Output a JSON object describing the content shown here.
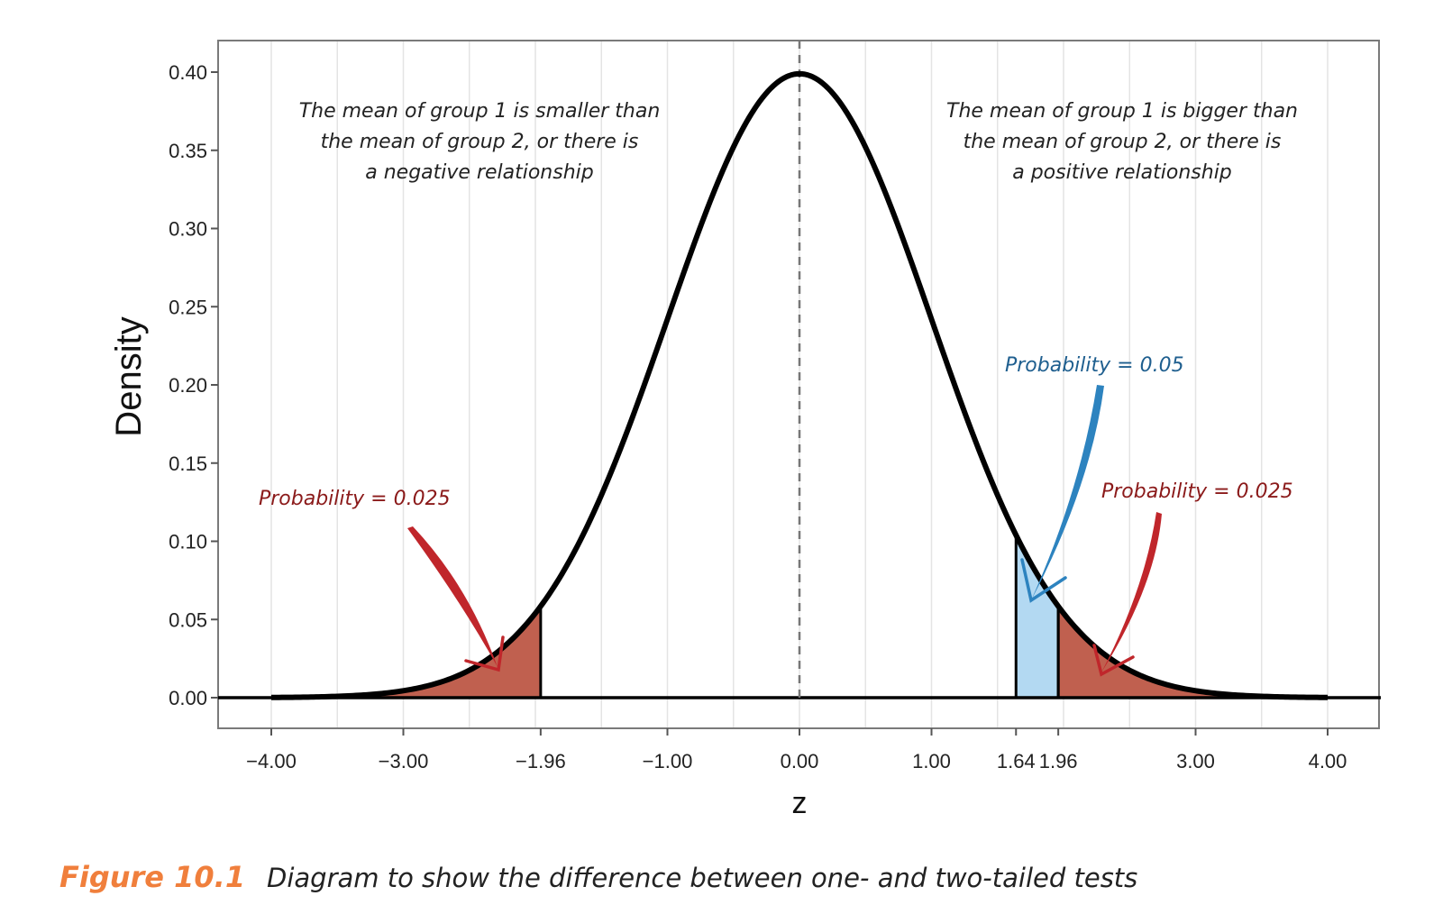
{
  "chart_data": {
    "type": "area",
    "distribution": "standard normal density",
    "xlabel": "z",
    "ylabel": "Density",
    "xlim": [
      -4.4,
      4.4
    ],
    "ylim": [
      -0.02,
      0.42
    ],
    "x_ticks": [
      -4.0,
      -3.0,
      -1.96,
      -1.0,
      0.0,
      1.0,
      1.64,
      1.96,
      3.0,
      4.0
    ],
    "x_tick_labels": [
      "−4.00",
      "−3.00",
      "−1.96",
      "−1.00",
      "0.00",
      "1.00",
      "1.64",
      "1.96",
      "3.00",
      "4.00"
    ],
    "y_ticks": [
      0.0,
      0.05,
      0.1,
      0.15,
      0.2,
      0.25,
      0.3,
      0.35,
      0.4
    ],
    "y_tick_labels": [
      "0.00",
      "0.05",
      "0.10",
      "0.15",
      "0.20",
      "0.25",
      "0.30",
      "0.35",
      "0.40"
    ],
    "mean_line_x": 0.0,
    "grid": "vertical minor lines",
    "curve": {
      "x_from": -4.0,
      "x_to": 4.0,
      "peak_density": 0.4
    },
    "shaded_regions": [
      {
        "from": -4.0,
        "to": -1.96,
        "color": "#c0604f",
        "probability": 0.025
      },
      {
        "from": 1.64,
        "to": 1.96,
        "color": "#b3d9f2",
        "probability": 0.05
      },
      {
        "from": 1.96,
        "to": 4.0,
        "color": "#c0604f",
        "probability": 0.025
      }
    ],
    "annotations": {
      "left_note": [
        "The mean of group 1 is smaller than",
        "the mean of group 2, or there is",
        "a negative relationship"
      ],
      "right_note": [
        "The mean of group 1 is bigger than",
        "the mean of group 2, or there is",
        "a positive relationship"
      ],
      "left_prob": "Probability = 0.025",
      "right_prob": "Probability = 0.025",
      "one_tail_prob": "Probability = 0.05"
    }
  },
  "caption": {
    "label": "Figure 10.1",
    "text": "Diagram to show the difference between one- and two-tailed tests"
  },
  "colors": {
    "tail_fill": "#c0604f",
    "one_tail_fill": "#b3d9f2",
    "red_text": "#8b1a1a",
    "red_arrow": "#c0262b",
    "blue_text": "#1f5f8f",
    "blue_arrow": "#2d83bf",
    "caption_label": "#f07f3c"
  }
}
